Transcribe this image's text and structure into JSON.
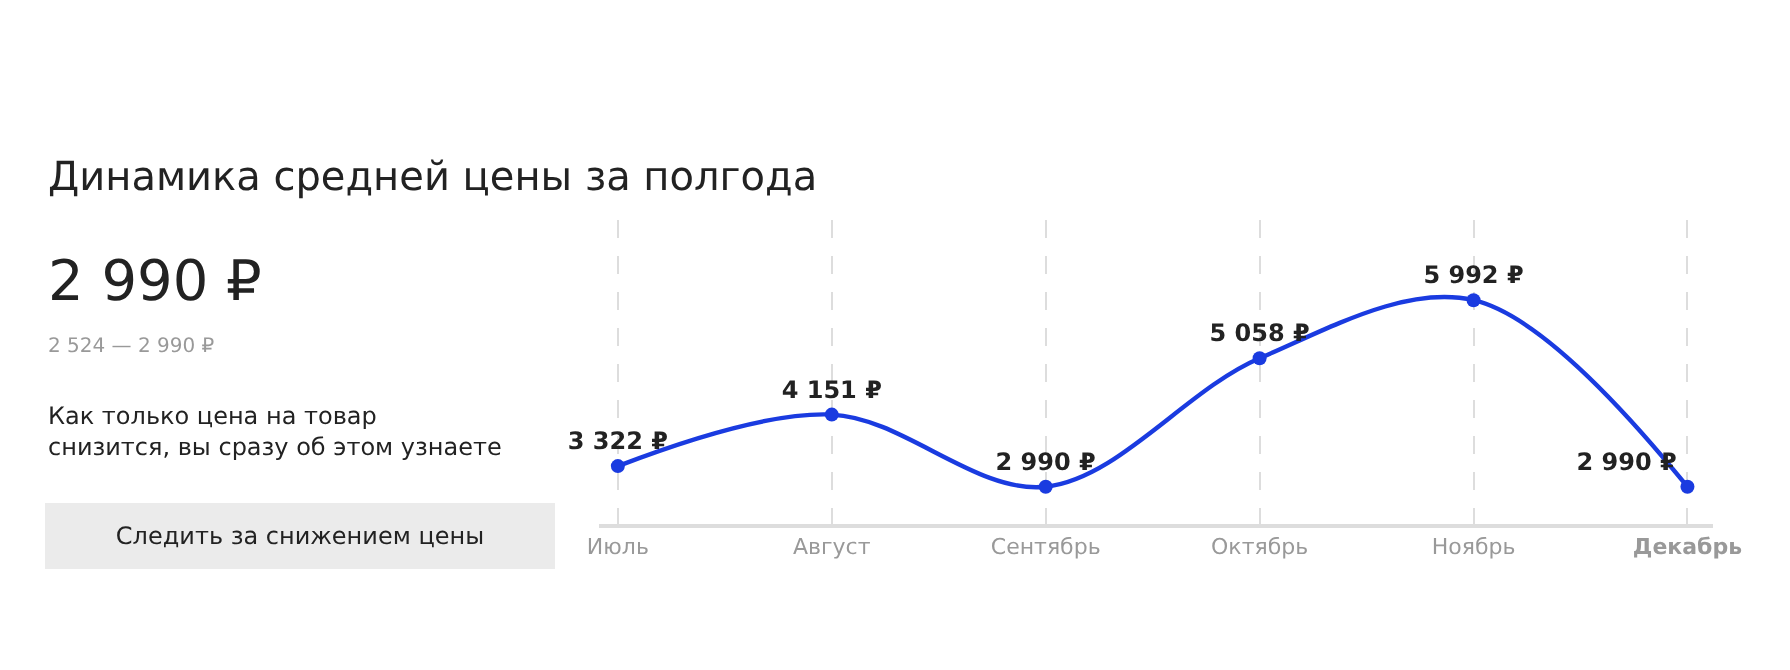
{
  "chart_data": {
    "type": "line",
    "title": "Динамика средней цены за полгода",
    "categories": [
      "Июль",
      "Август",
      "Сентябрь",
      "Октябрь",
      "Ноябрь",
      "Декабрь"
    ],
    "series": [
      {
        "color": "#1a3be0",
        "values": [
          3322,
          4151,
          2990,
          5058,
          5992,
          2990
        ],
        "value_labels": [
          "3 322 ₽",
          "4 151 ₽",
          "2 990 ₽",
          "5 058 ₽",
          "5 992 ₽",
          "2 990 ₽"
        ]
      }
    ],
    "marker": "circle",
    "line_style": "solid",
    "grid": "x",
    "tick_labels": "x",
    "annotations": [
      "2 990 ₽",
      "2 524 — 2 990 ₽",
      "Как только цена на товар\nснизится, вы сразу об этом узнаете",
      "Следить за снижением цены"
    ]
  }
}
